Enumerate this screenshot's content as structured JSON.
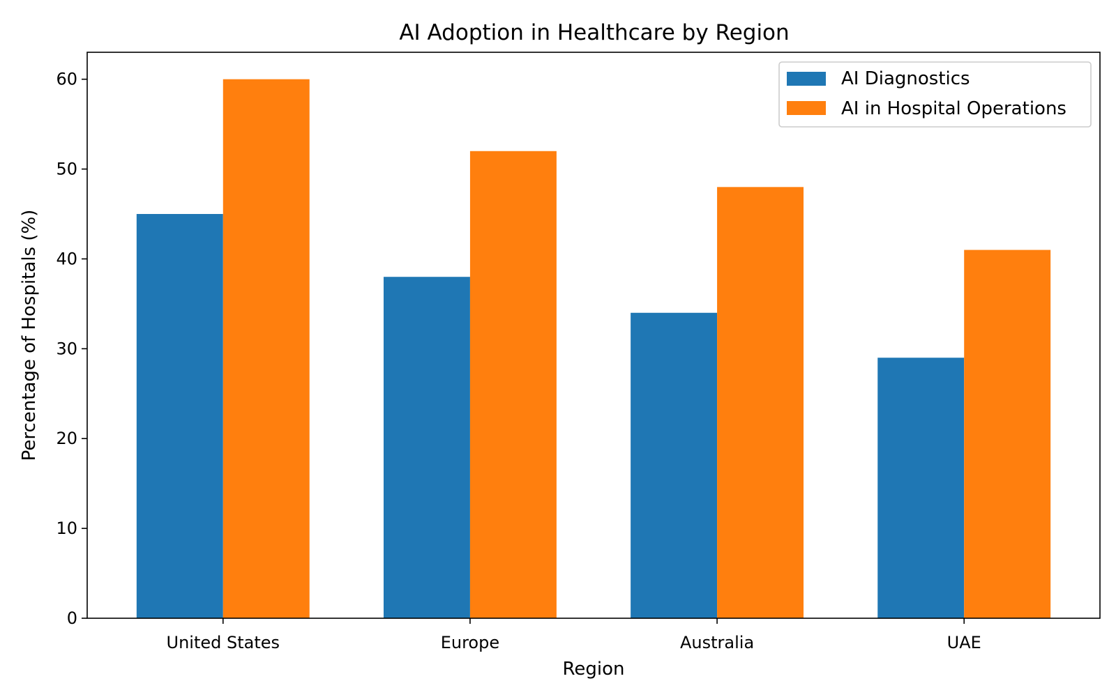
{
  "chart_data": {
    "type": "bar",
    "title": "AI Adoption in Healthcare by Region",
    "xlabel": "Region",
    "ylabel": "Percentage of Hospitals (%)",
    "categories": [
      "United States",
      "Europe",
      "Australia",
      "UAE"
    ],
    "series": [
      {
        "name": "AI Diagnostics",
        "color": "#1f77b4",
        "values": [
          45,
          38,
          34,
          29
        ]
      },
      {
        "name": "AI in Hospital Operations",
        "color": "#ff7f0e",
        "values": [
          60,
          52,
          48,
          41
        ]
      }
    ],
    "ylim": [
      0,
      63
    ],
    "yticks": [
      0,
      10,
      20,
      30,
      40,
      50,
      60
    ],
    "grid": false,
    "legend_position": "top-right"
  }
}
